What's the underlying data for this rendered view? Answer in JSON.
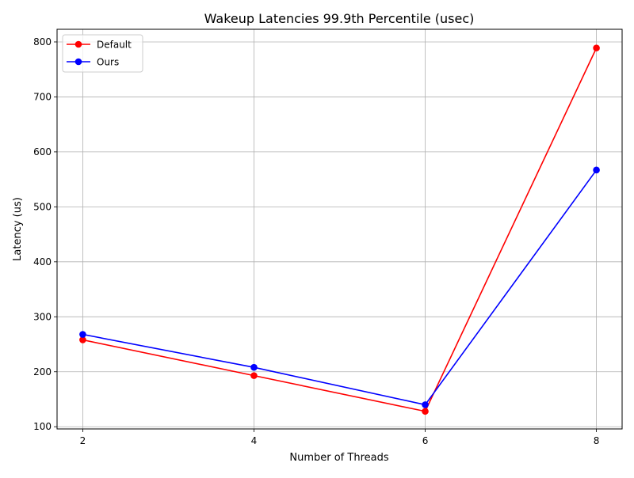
{
  "chart_data": {
    "type": "line",
    "title": "Wakeup Latencies 99.9th Percentile (usec)",
    "xlabel": "Number of Threads",
    "ylabel": "Latency (us)",
    "x": [
      2,
      4,
      6,
      8
    ],
    "x_ticks": [
      2,
      4,
      6,
      8
    ],
    "y_ticks": [
      100,
      200,
      300,
      400,
      500,
      600,
      700,
      800
    ],
    "xlim": [
      1.7,
      8.3
    ],
    "ylim": [
      96,
      823
    ],
    "grid": true,
    "legend_position": "top-left",
    "series": [
      {
        "name": "Default",
        "color": "#ff0000",
        "values": [
          258,
          193,
          128,
          789
        ]
      },
      {
        "name": "Ours",
        "color": "#0000ff",
        "values": [
          268,
          208,
          140,
          567
        ]
      }
    ]
  }
}
